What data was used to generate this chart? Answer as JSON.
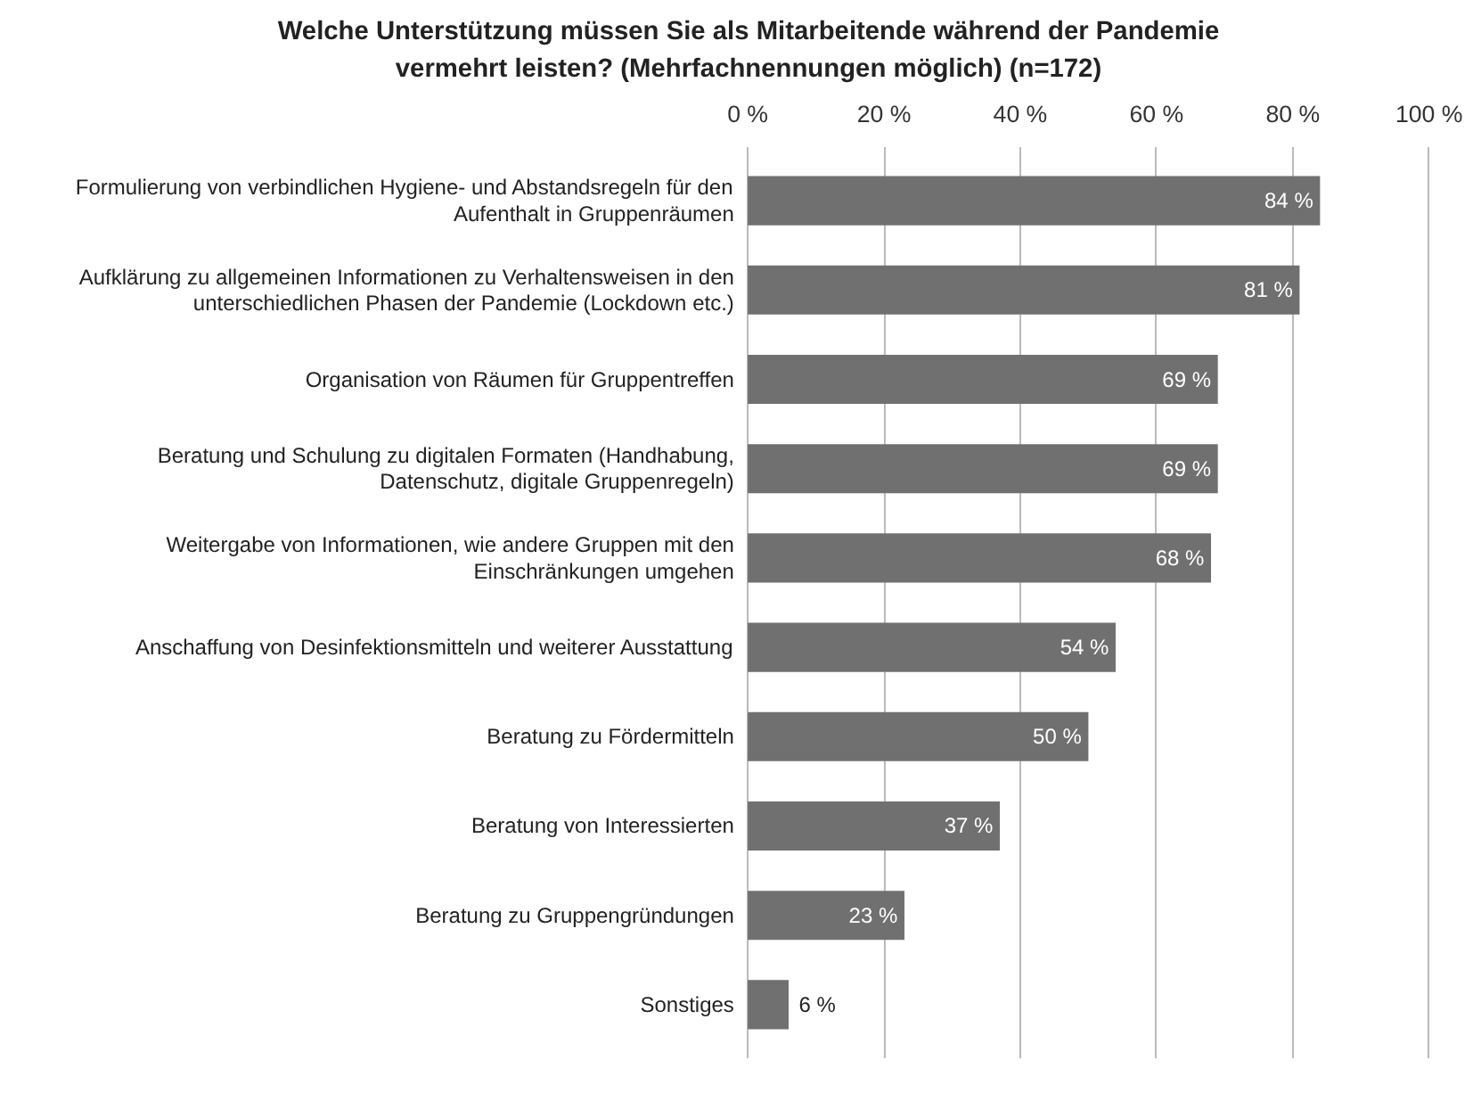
{
  "chart_data": {
    "type": "bar",
    "orientation": "horizontal",
    "title": "Welche Unterstützung müssen Sie als Mitarbeitende während der Pandemie vermehrt leisten? (Mehrfachnennungen möglich) (n=172)",
    "categories": [
      "Formulierung von verbindlichen Hygiene- und Abstandsregeln für den Aufenthalt in Gruppenräumen",
      "Aufklärung zu allgemeinen Informationen zu Verhaltensweisen in den unterschiedlichen Phasen der Pandemie (Lockdown etc.)",
      "Organisation von Räumen für Gruppentreffen",
      "Beratung und Schulung zu digitalen Formaten (Handhabung, Datenschutz, digitale Gruppenregeln)",
      "Weitergabe von Informationen, wie andere Gruppen mit den Einschränkungen umgehen",
      "Anschaffung von Desinfektionsmitteln und weiterer Ausstattung",
      "Beratung zu Fördermitteln",
      "Beratung von Interessierten",
      "Beratung zu Gruppengründungen",
      "Sonstiges"
    ],
    "values": [
      84,
      81,
      69,
      69,
      68,
      54,
      50,
      37,
      23,
      6
    ],
    "value_labels": [
      "84 %",
      "81 %",
      "69 %",
      "69 %",
      "68 %",
      "54 %",
      "50 %",
      "37 %",
      "23 %",
      "6 %"
    ],
    "color": "#707070",
    "xlim": [
      0,
      100
    ],
    "xticks": [
      {
        "value": 0,
        "label": "0 %"
      },
      {
        "value": 20,
        "label": "20 %"
      },
      {
        "value": 40,
        "label": "40 %"
      },
      {
        "value": 60,
        "label": "60 %"
      },
      {
        "value": 80,
        "label": "80 %"
      },
      {
        "value": 100,
        "label": "100 %"
      }
    ],
    "grid": "x"
  }
}
